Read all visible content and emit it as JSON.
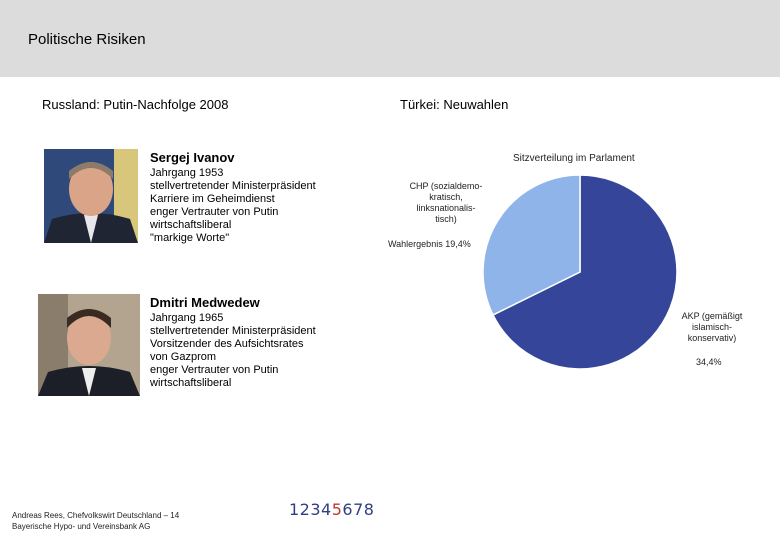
{
  "header": {
    "title": "Politische Risiken"
  },
  "left": {
    "heading": "Russland: Putin-Nachfolge 2008",
    "people": [
      {
        "name": "Sergej Ivanov",
        "facts": [
          "Jahrgang 1953",
          "stellvertretender Ministerpräsident",
          "Karriere im Geheimdienst",
          "enger Vertrauter von Putin",
          "wirtschaftsliberal",
          "\"markige Worte\""
        ]
      },
      {
        "name": "Dmitri Medwedew",
        "facts": [
          "Jahrgang 1965",
          "stellvertretender Ministerpräsident",
          "Vorsitzender des Aufsichtsrates",
          "von Gazprom",
          "enger Vertrauter von Putin",
          "wirtschaftsliberal"
        ]
      }
    ]
  },
  "right": {
    "heading": "Türkei: Neuwahlen"
  },
  "chart_data": {
    "type": "pie",
    "title": "Sitzverteilung im Parlament",
    "slices": [
      {
        "label": "AKP (gemäßigt islamisch-konservativ)",
        "label_lines": [
          "AKP (gemäßigt",
          "islamisch-",
          "konservativ)"
        ],
        "value_text": "34,4%",
        "share": 0.677,
        "color": "#34459a"
      },
      {
        "label": "CHP (sozialdemokratisch, linksnationalistisch)",
        "label_lines": [
          "CHP (sozialdemo-",
          "kratisch,",
          "linksnationalis-",
          "tisch)"
        ],
        "value_text": "Wahlergebnis 19,4%",
        "share": 0.323,
        "color": "#8fb4ea"
      }
    ]
  },
  "footer": {
    "line1": "Andreas Rees, Chefvolkswirt Deutschland – 14",
    "line2": "Bayerische Hypo- und Vereinsbank AG"
  },
  "pager": {
    "pre": "1234",
    "current": "5",
    "post": "678"
  },
  "colors": {
    "header_bg": "#dcdcdc",
    "akp": "#34459a",
    "chp": "#8fb4ea",
    "pager": "#2f3f82",
    "pager_current": "#c0392b"
  }
}
